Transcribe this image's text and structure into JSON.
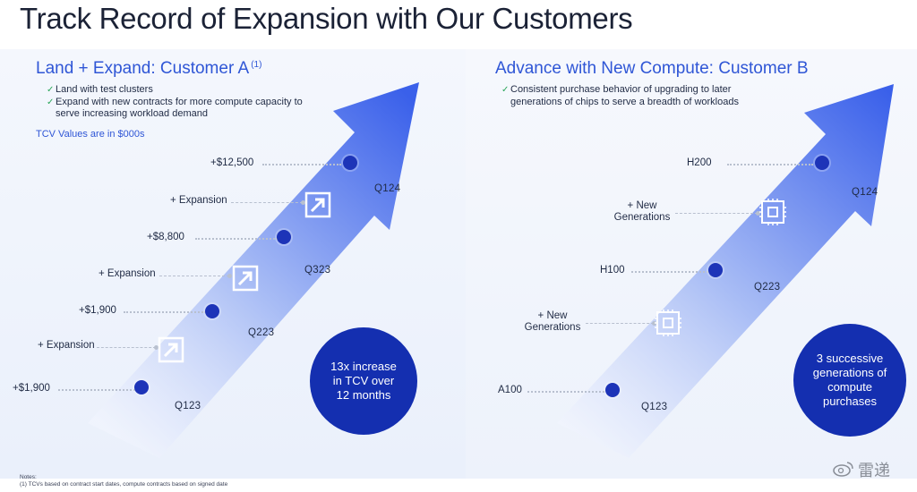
{
  "title": "Track Record of Expansion with Our Customers",
  "customer_a": {
    "heading": "Land + Expand: Customer A",
    "heading_sup": "(1)",
    "bullets": [
      "Land with test clusters",
      "Expand with new contracts for more compute capacity to serve increasing workload demand"
    ],
    "tcv_note": "TCV Values are in $000s",
    "values": [
      "+$1,900",
      "+$1,900",
      "+$8,800",
      "+$12,500"
    ],
    "expansion_label": "+ Expansion",
    "quarters": [
      "Q123",
      "Q223",
      "Q323",
      "Q124"
    ],
    "badge": "13x increase in TCV over 12 months"
  },
  "customer_b": {
    "heading": "Advance with New Compute: Customer B",
    "bullets": [
      "Consistent purchase behavior of upgrading to later generations of chips to serve a breadth of workloads"
    ],
    "chips": [
      "A100",
      "H100",
      "H200"
    ],
    "new_gen_label_1": "+ New",
    "new_gen_label_2": "Generations",
    "quarters": [
      "Q123",
      "Q223",
      "Q124"
    ],
    "badge": "3 successive generations of compute purchases"
  },
  "notes": {
    "heading": "Notes:",
    "line": "(1) TCVs based on contract start dates, compute contracts based on signed date"
  },
  "watermark": "雷递",
  "colors": {
    "arrow_start": "#dfe6fb",
    "arrow_end": "#3d63ea",
    "node": "#1d34b8",
    "badge": "#142fb0",
    "accent_text": "#2f56d6",
    "check": "#2aa65a"
  },
  "icons": {
    "expansion": "expand-diagonal-arrow-icon",
    "new_generation": "chip-icon",
    "bullet": "check-icon",
    "watermark": "weibo-logo-icon"
  }
}
